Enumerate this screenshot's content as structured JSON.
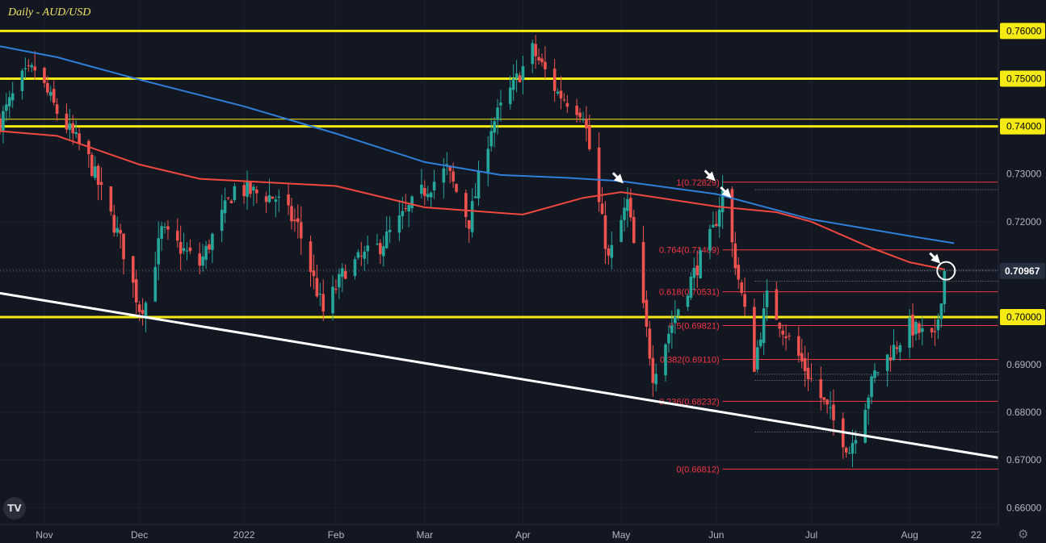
{
  "title": "Daily - AUD/USD",
  "logo_text": "TV",
  "colors": {
    "background": "#131722",
    "up": "#26a69a",
    "down": "#ef5350",
    "ma_fast": "#f0483e",
    "ma_slow": "#2f7fd9",
    "level": "#f5ea14",
    "trendline": "#ffffff",
    "fib": "#f23645",
    "price_label_bg": "#263041"
  },
  "icons": {
    "settings": "gear-icon",
    "logo": "tradingview-logo-icon"
  },
  "chart_data": {
    "type": "candlestick",
    "symbol": "AUD/USD",
    "timeframe": "Daily",
    "ylim": [
      0.6565,
      0.7665
    ],
    "yticks": [
      "0.66000",
      "0.67000",
      "0.68000",
      "0.69000",
      "0.70000",
      "0.71000",
      "0.72000",
      "0.73000",
      "0.74000",
      "0.75000",
      "0.76000"
    ],
    "x_ticks": [
      {
        "label": "Nov",
        "date": "2021-11-01"
      },
      {
        "label": "Dec",
        "date": "2021-12-01"
      },
      {
        "label": "2022",
        "date": "2022-01-03"
      },
      {
        "label": "Feb",
        "date": "2022-02-01"
      },
      {
        "label": "Mar",
        "date": "2022-03-01"
      },
      {
        "label": "Apr",
        "date": "2022-04-01"
      },
      {
        "label": "May",
        "date": "2022-05-02"
      },
      {
        "label": "Jun",
        "date": "2022-06-01"
      },
      {
        "label": "Jul",
        "date": "2022-07-01"
      },
      {
        "label": "Aug",
        "date": "2022-08-01"
      },
      {
        "label": "22",
        "date": "2022-08-22"
      }
    ],
    "x_range": [
      "2021-10-18",
      "2022-08-29"
    ],
    "last_price": "0.70967",
    "last_price_value": 0.70967,
    "levels": [
      0.76,
      0.75,
      0.74,
      0.7
    ],
    "fibonacci": {
      "start_date": "2022-06-03",
      "end_date": "2022-08-29",
      "levels": [
        {
          "label": "1(0.72829)",
          "value": 0.72829
        },
        {
          "label": "0.764(0.71409)",
          "value": 0.71409
        },
        {
          "label": "0.618(0.70531)",
          "value": 0.70531
        },
        {
          "label": "0.5(0.69821)",
          "value": 0.69821
        },
        {
          "label": "0.382(0.69110)",
          "value": 0.6911
        },
        {
          "label": "0.236(0.68232)",
          "value": 0.68232
        },
        {
          "label": "0(0.66812)",
          "value": 0.66812
        }
      ]
    },
    "dotted_levels": [
      0.7267,
      0.7098,
      0.7075,
      0.688,
      0.6867,
      0.6759
    ],
    "trendline": [
      {
        "date": "2021-10-18",
        "value": 0.705
      },
      {
        "date": "2022-08-29",
        "value": 0.6705
      }
    ],
    "ma_slow": [
      {
        "date": "2021-10-18",
        "value": 0.7568
      },
      {
        "date": "2021-11-05",
        "value": 0.7545
      },
      {
        "date": "2021-12-01",
        "value": 0.7498
      },
      {
        "date": "2022-01-03",
        "value": 0.7442
      },
      {
        "date": "2022-02-01",
        "value": 0.7385
      },
      {
        "date": "2022-03-01",
        "value": 0.7325
      },
      {
        "date": "2022-03-25",
        "value": 0.7298
      },
      {
        "date": "2022-04-15",
        "value": 0.7292
      },
      {
        "date": "2022-05-02",
        "value": 0.7285
      },
      {
        "date": "2022-06-01",
        "value": 0.7258
      },
      {
        "date": "2022-07-01",
        "value": 0.7205
      },
      {
        "date": "2022-08-01",
        "value": 0.717
      },
      {
        "date": "2022-08-15",
        "value": 0.7155
      }
    ],
    "ma_fast": [
      {
        "date": "2021-10-18",
        "value": 0.739
      },
      {
        "date": "2021-11-05",
        "value": 0.738
      },
      {
        "date": "2021-12-01",
        "value": 0.732
      },
      {
        "date": "2021-12-20",
        "value": 0.729
      },
      {
        "date": "2022-01-03",
        "value": 0.7285
      },
      {
        "date": "2022-02-01",
        "value": 0.7275
      },
      {
        "date": "2022-03-01",
        "value": 0.723
      },
      {
        "date": "2022-04-01",
        "value": 0.7215
      },
      {
        "date": "2022-04-20",
        "value": 0.725
      },
      {
        "date": "2022-05-02",
        "value": 0.7262
      },
      {
        "date": "2022-06-01",
        "value": 0.7232
      },
      {
        "date": "2022-06-20",
        "value": 0.722
      },
      {
        "date": "2022-07-01",
        "value": 0.72
      },
      {
        "date": "2022-07-20",
        "value": 0.7145
      },
      {
        "date": "2022-08-01",
        "value": 0.7115
      },
      {
        "date": "2022-08-12",
        "value": 0.71
      }
    ],
    "close_path": [
      {
        "date": "2021-10-18",
        "value": 0.741
      },
      {
        "date": "2021-10-25",
        "value": 0.75
      },
      {
        "date": "2021-10-29",
        "value": 0.752
      },
      {
        "date": "2021-11-05",
        "value": 0.743
      },
      {
        "date": "2021-11-15",
        "value": 0.733
      },
      {
        "date": "2021-11-25",
        "value": 0.716
      },
      {
        "date": "2021-12-01",
        "value": 0.702
      },
      {
        "date": "2021-12-03",
        "value": 0.703
      },
      {
        "date": "2021-12-08",
        "value": 0.718
      },
      {
        "date": "2021-12-20",
        "value": 0.711
      },
      {
        "date": "2021-12-31",
        "value": 0.727
      },
      {
        "date": "2022-01-13",
        "value": 0.725
      },
      {
        "date": "2022-01-20",
        "value": 0.719
      },
      {
        "date": "2022-01-28",
        "value": 0.701
      },
      {
        "date": "2022-02-04",
        "value": 0.71
      },
      {
        "date": "2022-02-15",
        "value": 0.715
      },
      {
        "date": "2022-02-28",
        "value": 0.726
      },
      {
        "date": "2022-03-08",
        "value": 0.731
      },
      {
        "date": "2022-03-15",
        "value": 0.72
      },
      {
        "date": "2022-03-22",
        "value": 0.74
      },
      {
        "date": "2022-04-04",
        "value": 0.756
      },
      {
        "date": "2022-04-12",
        "value": 0.747
      },
      {
        "date": "2022-04-20",
        "value": 0.743
      },
      {
        "date": "2022-04-28",
        "value": 0.712
      },
      {
        "date": "2022-05-04",
        "value": 0.724
      },
      {
        "date": "2022-05-12",
        "value": 0.688
      },
      {
        "date": "2022-05-20",
        "value": 0.702
      },
      {
        "date": "2022-05-31",
        "value": 0.718
      },
      {
        "date": "2022-06-03",
        "value": 0.726
      },
      {
        "date": "2022-06-13",
        "value": 0.69
      },
      {
        "date": "2022-06-17",
        "value": 0.704
      },
      {
        "date": "2022-06-30",
        "value": 0.688
      },
      {
        "date": "2022-07-13",
        "value": 0.672
      },
      {
        "date": "2022-07-21",
        "value": 0.688
      },
      {
        "date": "2022-08-01",
        "value": 0.698
      },
      {
        "date": "2022-08-09",
        "value": 0.695
      },
      {
        "date": "2022-08-12",
        "value": 0.7097
      }
    ],
    "annotations": [
      {
        "type": "arrow",
        "date": "2022-05-04",
        "value": 0.7265
      },
      {
        "type": "arrow",
        "date": "2022-06-02",
        "value": 0.727
      },
      {
        "type": "arrow",
        "date": "2022-06-07",
        "value": 0.7235
      },
      {
        "type": "arrow",
        "date": "2022-08-12",
        "value": 0.7097
      },
      {
        "type": "circle",
        "date": "2022-08-12",
        "value": 0.7097
      }
    ]
  }
}
